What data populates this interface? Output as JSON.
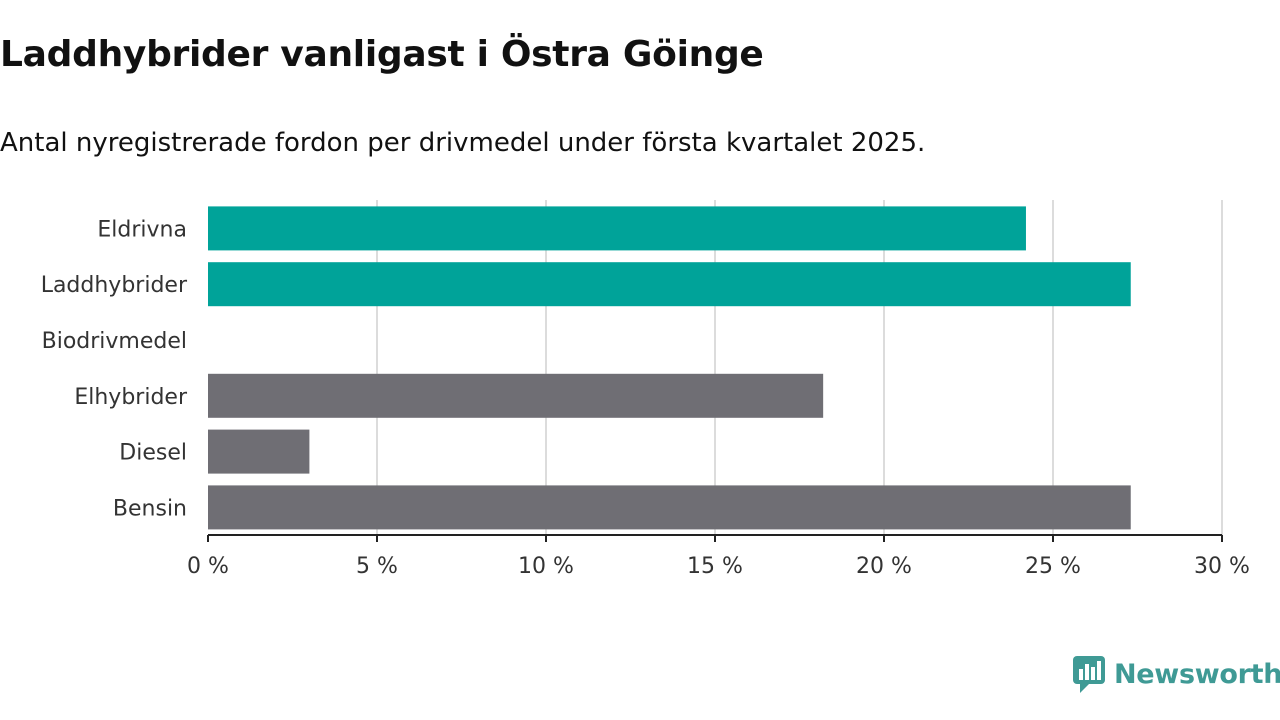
{
  "header": {
    "title": "Laddhybrider vanligast i Östra Göinge",
    "subtitle": "Antal nyregistrerade fordon per drivmedel under första kvartalet 2025."
  },
  "chart_data": {
    "type": "bar",
    "orientation": "horizontal",
    "categories": [
      "Eldrivna",
      "Laddhybrider",
      "Biodrivmedel",
      "Elhybrider",
      "Diesel",
      "Bensin"
    ],
    "values": [
      24.2,
      27.3,
      0,
      18.2,
      3.0,
      27.3
    ],
    "colors": [
      "#00a399",
      "#00a399",
      "#00a399",
      "#6f6e74",
      "#6f6e74",
      "#6f6e74"
    ],
    "xlim": [
      0,
      30
    ],
    "xticks": [
      0,
      5,
      10,
      15,
      20,
      25,
      30
    ],
    "tick_suffix": " %",
    "grid": "vertical",
    "xlabel": "",
    "ylabel": ""
  },
  "branding": {
    "logo_text": "Newsworthy",
    "logo_color": "#3f9a95"
  }
}
